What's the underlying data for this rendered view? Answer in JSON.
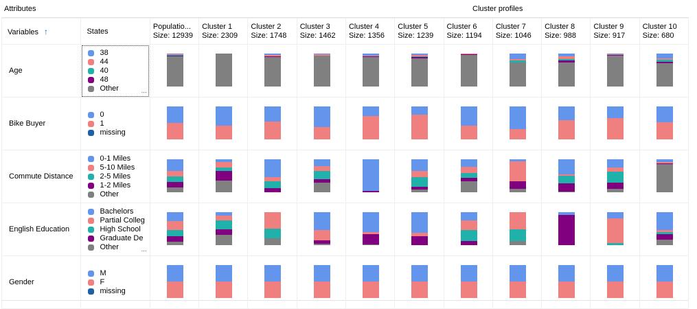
{
  "header": {
    "attributes_label": "Attributes",
    "profiles_label": "Cluster profiles"
  },
  "columns": {
    "variables": "Variables",
    "states": "States",
    "clusters": [
      {
        "name": "Populatio...",
        "size": "Size: 12939"
      },
      {
        "name": "Cluster 1",
        "size": "Size: 2309"
      },
      {
        "name": "Cluster 2",
        "size": "Size: 1748"
      },
      {
        "name": "Cluster 3",
        "size": "Size: 1462"
      },
      {
        "name": "Cluster 4",
        "size": "Size: 1356"
      },
      {
        "name": "Cluster 5",
        "size": "Size: 1239"
      },
      {
        "name": "Cluster 6",
        "size": "Size: 1194"
      },
      {
        "name": "Cluster 7",
        "size": "Size: 1046"
      },
      {
        "name": "Cluster 8",
        "size": "Size: 988"
      },
      {
        "name": "Cluster 9",
        "size": "Size: 917"
      },
      {
        "name": "Cluster 10",
        "size": "Size: 680"
      }
    ]
  },
  "ellipsis": "...",
  "rows": [
    {
      "variable": "Age",
      "states": [
        {
          "label": "38",
          "color": "#6495ed"
        },
        {
          "label": "44",
          "color": "#f08080"
        },
        {
          "label": "40",
          "color": "#20b2aa"
        },
        {
          "label": "48",
          "color": "#800080"
        },
        {
          "label": "Other",
          "color": "#808080"
        }
      ],
      "has_more": true,
      "profiles": [
        [
          0.03,
          0.02,
          0.02,
          0.01,
          0.92
        ],
        [
          0,
          0,
          0,
          0,
          1
        ],
        [
          0.05,
          0.03,
          0,
          0.02,
          0.9
        ],
        [
          0.02,
          0.04,
          0,
          0,
          0.94
        ],
        [
          0.06,
          0.02,
          0,
          0.02,
          0.9
        ],
        [
          0.05,
          0.04,
          0.02,
          0.03,
          0.86
        ],
        [
          0,
          0.02,
          0,
          0.03,
          0.95
        ],
        [
          0.16,
          0.04,
          0.08,
          0,
          0.72
        ],
        [
          0.08,
          0.08,
          0.05,
          0.07,
          0.72
        ],
        [
          0.02,
          0.02,
          0,
          0.03,
          0.93
        ],
        [
          0.15,
          0.04,
          0.06,
          0.04,
          0.71
        ]
      ]
    },
    {
      "variable": "Bike Buyer",
      "states": [
        {
          "label": "0",
          "color": "#6495ed"
        },
        {
          "label": "1",
          "color": "#f08080"
        },
        {
          "label": "missing",
          "color": "#1f5fa8"
        }
      ],
      "has_more": false,
      "profiles": [
        [
          0.5,
          0.5,
          0
        ],
        [
          0.58,
          0.42,
          0
        ],
        [
          0.45,
          0.55,
          0
        ],
        [
          0.62,
          0.38,
          0
        ],
        [
          0.3,
          0.7,
          0
        ],
        [
          0.25,
          0.75,
          0
        ],
        [
          0.58,
          0.42,
          0
        ],
        [
          0.68,
          0.32,
          0
        ],
        [
          0.42,
          0.58,
          0
        ],
        [
          0.35,
          0.65,
          0
        ],
        [
          0.48,
          0.52,
          0
        ]
      ]
    },
    {
      "variable": "Commute Distance",
      "states": [
        {
          "label": "0-1 Miles",
          "color": "#6495ed"
        },
        {
          "label": "5-10 Miles",
          "color": "#f08080"
        },
        {
          "label": "2-5 Miles",
          "color": "#20b2aa"
        },
        {
          "label": "1-2 Miles",
          "color": "#800080"
        },
        {
          "label": "Other",
          "color": "#808080"
        }
      ],
      "has_more": false,
      "profiles": [
        [
          0.35,
          0.18,
          0.16,
          0.17,
          0.14
        ],
        [
          0.08,
          0.18,
          0.1,
          0.28,
          0.36
        ],
        [
          0.55,
          0.12,
          0.2,
          0.13,
          0.0
        ],
        [
          0.2,
          0.15,
          0.26,
          0.09,
          0.3
        ],
        [
          0.95,
          0,
          0,
          0.05,
          0
        ],
        [
          0.35,
          0.2,
          0.28,
          0.09,
          0.08
        ],
        [
          0.22,
          0.2,
          0.15,
          0.09,
          0.34
        ],
        [
          0.06,
          0.6,
          0,
          0.24,
          0.1
        ],
        [
          0.45,
          0.05,
          0.23,
          0.24,
          0.03
        ],
        [
          0.25,
          0.13,
          0.32,
          0.2,
          0.1
        ],
        [
          0.08,
          0.04,
          0,
          0.03,
          0.85
        ]
      ]
    },
    {
      "variable": "English Education",
      "states": [
        {
          "label": "Bachelors",
          "color": "#6495ed"
        },
        {
          "label": "Partial Colleg",
          "color": "#f08080"
        },
        {
          "label": "High School",
          "color": "#20b2aa"
        },
        {
          "label": "Graduate De",
          "color": "#800080"
        },
        {
          "label": "Other",
          "color": "#808080"
        }
      ],
      "has_more": true,
      "profiles": [
        [
          0.28,
          0.27,
          0.18,
          0.17,
          0.1
        ],
        [
          0.1,
          0.15,
          0.27,
          0.17,
          0.31
        ],
        [
          0,
          0.5,
          0.3,
          0,
          0.2
        ],
        [
          0.55,
          0.3,
          0,
          0.1,
          0.05
        ],
        [
          0.6,
          0.07,
          0,
          0.3,
          0.03
        ],
        [
          0.62,
          0.1,
          0,
          0.28,
          0
        ],
        [
          0.25,
          0.3,
          0.33,
          0.12,
          0
        ],
        [
          0,
          0.52,
          0.36,
          0,
          0.12
        ],
        [
          0.08,
          0,
          0,
          0.92,
          0
        ],
        [
          0.18,
          0.75,
          0.07,
          0,
          0
        ],
        [
          0.55,
          0.05,
          0.06,
          0.17,
          0.17
        ]
      ]
    },
    {
      "variable": "Gender",
      "states": [
        {
          "label": "M",
          "color": "#6495ed"
        },
        {
          "label": "F",
          "color": "#f08080"
        },
        {
          "label": "missing",
          "color": "#1f5fa8"
        }
      ],
      "has_more": false,
      "profiles": [
        [
          0.5,
          0.5,
          0
        ],
        [
          0.5,
          0.5,
          0
        ],
        [
          0.5,
          0.5,
          0
        ],
        [
          0.5,
          0.5,
          0
        ],
        [
          0.5,
          0.5,
          0
        ],
        [
          0.5,
          0.5,
          0
        ],
        [
          0.5,
          0.5,
          0
        ],
        [
          0.5,
          0.5,
          0
        ],
        [
          0.5,
          0.5,
          0
        ],
        [
          0.5,
          0.5,
          0
        ],
        [
          0.5,
          0.5,
          0
        ]
      ]
    }
  ]
}
